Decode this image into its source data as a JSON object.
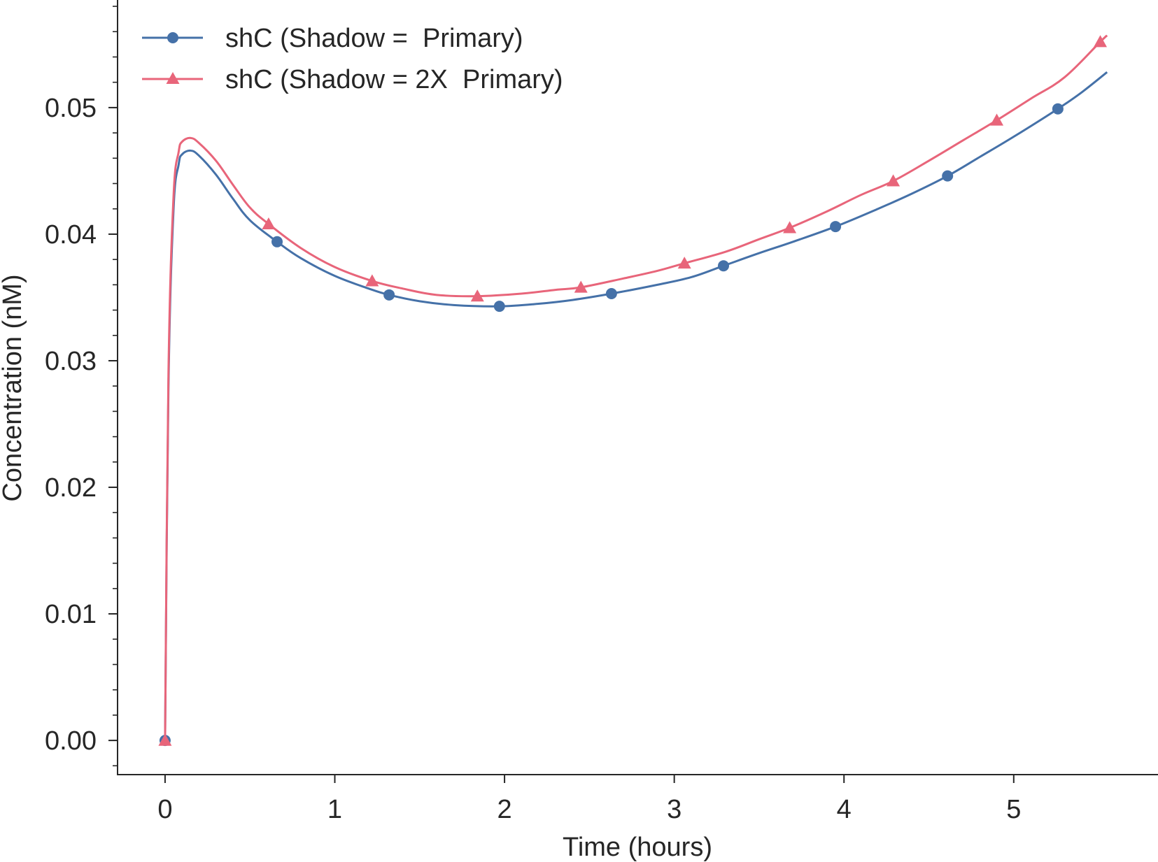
{
  "chart_data": {
    "type": "line",
    "xlabel": "Time (hours)",
    "ylabel": "Concentration (nM)",
    "xlim": [
      -0.28,
      5.85
    ],
    "ylim": [
      -0.0027,
      0.0585
    ],
    "x_ticks": [
      0,
      1,
      2,
      3,
      4,
      5
    ],
    "x_tick_labels": [
      "0",
      "1",
      "2",
      "3",
      "4",
      "5"
    ],
    "y_ticks": [
      0.0,
      0.01,
      0.02,
      0.03,
      0.04,
      0.05
    ],
    "y_tick_labels": [
      "0.00",
      "0.01",
      "0.02",
      "0.03",
      "0.04",
      "0.05"
    ],
    "y_minor_step": 0.002,
    "grid": false,
    "legend_position": "top-left",
    "series": [
      {
        "name": "shC (Shadow =  Primary)",
        "color": "#4571a8",
        "marker": "circle",
        "line": [
          [
            0,
            0
          ],
          [
            0.02,
            0.028
          ],
          [
            0.05,
            0.042
          ],
          [
            0.08,
            0.0455
          ],
          [
            0.1,
            0.0463
          ],
          [
            0.15,
            0.0466
          ],
          [
            0.2,
            0.0462
          ],
          [
            0.3,
            0.0447
          ],
          [
            0.4,
            0.0428
          ],
          [
            0.5,
            0.0411
          ],
          [
            0.66,
            0.0394
          ],
          [
            0.8,
            0.0381
          ],
          [
            1.0,
            0.0367
          ],
          [
            1.2,
            0.0357
          ],
          [
            1.32,
            0.0352
          ],
          [
            1.5,
            0.0347
          ],
          [
            1.7,
            0.0344
          ],
          [
            1.97,
            0.0343
          ],
          [
            2.2,
            0.0345
          ],
          [
            2.4,
            0.0348
          ],
          [
            2.63,
            0.0353
          ],
          [
            2.9,
            0.036
          ],
          [
            3.1,
            0.0366
          ],
          [
            3.29,
            0.0375
          ],
          [
            3.5,
            0.0385
          ],
          [
            3.7,
            0.0394
          ],
          [
            3.95,
            0.0406
          ],
          [
            4.2,
            0.042
          ],
          [
            4.4,
            0.0432
          ],
          [
            4.61,
            0.0446
          ],
          [
            4.8,
            0.0461
          ],
          [
            5.0,
            0.0477
          ],
          [
            5.26,
            0.0499
          ],
          [
            5.4,
            0.0512
          ],
          [
            5.55,
            0.0528
          ]
        ],
        "markers_x": [
          0,
          0.66,
          1.32,
          1.97,
          2.63,
          3.29,
          3.95,
          4.61,
          5.26
        ],
        "markers_y": [
          0,
          0.0394,
          0.0352,
          0.0343,
          0.0353,
          0.0375,
          0.0406,
          0.0446,
          0.0499
        ]
      },
      {
        "name": "shC (Shadow = 2X  Primary)",
        "color": "#e8657a",
        "marker": "triangle",
        "line": [
          [
            0,
            0
          ],
          [
            0.02,
            0.029
          ],
          [
            0.05,
            0.043
          ],
          [
            0.08,
            0.0465
          ],
          [
            0.1,
            0.0473
          ],
          [
            0.15,
            0.0476
          ],
          [
            0.2,
            0.0472
          ],
          [
            0.3,
            0.0458
          ],
          [
            0.4,
            0.0439
          ],
          [
            0.5,
            0.0421
          ],
          [
            0.61,
            0.0408
          ],
          [
            0.8,
            0.0389
          ],
          [
            1.0,
            0.0374
          ],
          [
            1.22,
            0.0363
          ],
          [
            1.4,
            0.0357
          ],
          [
            1.6,
            0.0352
          ],
          [
            1.84,
            0.0351
          ],
          [
            2.1,
            0.0353
          ],
          [
            2.3,
            0.0356
          ],
          [
            2.45,
            0.0358
          ],
          [
            2.7,
            0.0365
          ],
          [
            2.9,
            0.0371
          ],
          [
            3.06,
            0.0377
          ],
          [
            3.3,
            0.0386
          ],
          [
            3.5,
            0.0396
          ],
          [
            3.68,
            0.0405
          ],
          [
            3.9,
            0.0418
          ],
          [
            4.1,
            0.0431
          ],
          [
            4.29,
            0.0442
          ],
          [
            4.5,
            0.0458
          ],
          [
            4.7,
            0.0474
          ],
          [
            4.9,
            0.049
          ],
          [
            5.1,
            0.0507
          ],
          [
            5.3,
            0.0524
          ],
          [
            5.51,
            0.0552
          ],
          [
            5.55,
            0.0557
          ]
        ],
        "markers_x": [
          0,
          0.61,
          1.22,
          1.84,
          2.45,
          3.06,
          3.68,
          4.29,
          4.9,
          5.51
        ],
        "markers_y": [
          0,
          0.0408,
          0.0363,
          0.0351,
          0.0358,
          0.0377,
          0.0405,
          0.0442,
          0.049,
          0.0552
        ]
      }
    ]
  }
}
